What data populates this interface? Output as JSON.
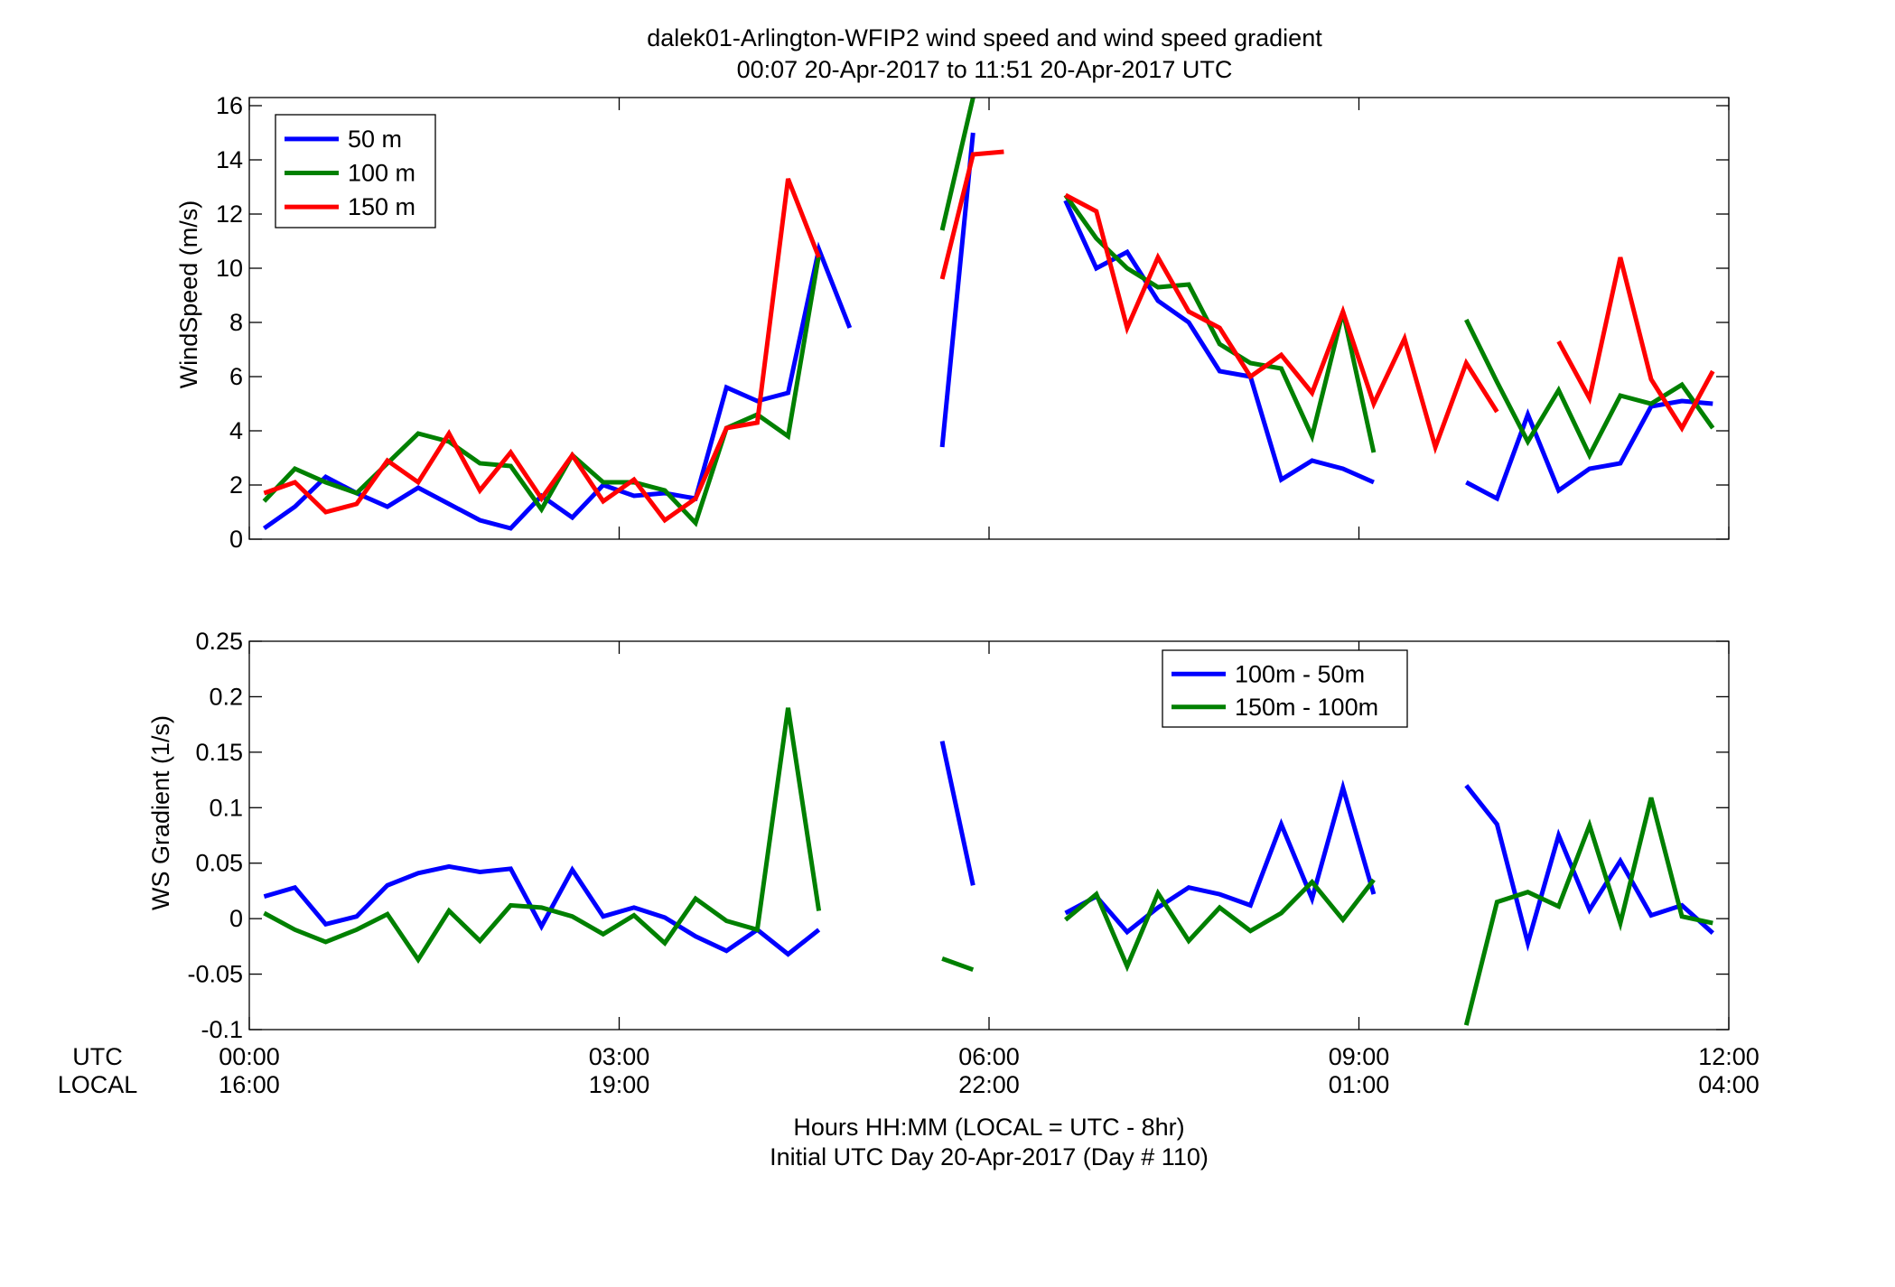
{
  "figure": {
    "title_line1": "dalek01-Arlington-WFIP2  wind speed and wind speed gradient",
    "title_line2": "00:07 20-Apr-2017 to 11:51 20-Apr-2017  UTC",
    "xlabel_line1": "Hours HH:MM  (LOCAL = UTC - 8hr)",
    "xlabel_line2": "Initial UTC Day 20-Apr-2017 (Day # 110)",
    "utc_row_label": "UTC",
    "local_row_label": "LOCAL",
    "utc_ticks": [
      "00:00",
      "03:00",
      "06:00",
      "09:00",
      "12:00"
    ],
    "local_ticks": [
      "16:00",
      "19:00",
      "22:00",
      "01:00",
      "04:00"
    ]
  },
  "chart_data": [
    {
      "type": "line",
      "title": "",
      "xlabel": "",
      "ylabel": "WindSpeed (m/s)",
      "xlim": [
        0,
        12
      ],
      "ylim": [
        0,
        16.3
      ],
      "yticks": [
        0,
        2,
        4,
        6,
        8,
        10,
        12,
        14,
        16
      ],
      "ytick_labels": [
        "0",
        "2",
        "4",
        "6",
        "8",
        "10",
        "12",
        "14",
        "16"
      ],
      "grid": false,
      "legend_position": "top-left",
      "x": [
        0.12,
        0.37,
        0.62,
        0.87,
        1.12,
        1.37,
        1.62,
        1.87,
        2.12,
        2.37,
        2.62,
        2.87,
        3.12,
        3.37,
        3.62,
        3.87,
        4.12,
        4.37,
        4.62,
        4.87,
        5.12,
        5.37,
        5.62,
        5.87,
        6.12,
        6.37,
        6.62,
        6.87,
        7.12,
        7.37,
        7.62,
        7.87,
        8.12,
        8.37,
        8.62,
        8.87,
        9.12,
        9.37,
        9.62,
        9.87,
        10.12,
        10.37,
        10.62,
        10.87,
        11.12,
        11.37,
        11.62,
        11.87
      ],
      "series": [
        {
          "name": "50 m",
          "color": "#0000ff",
          "values": [
            0.4,
            1.2,
            2.3,
            1.7,
            1.2,
            1.9,
            1.3,
            0.7,
            0.4,
            1.6,
            0.8,
            2.0,
            1.6,
            1.7,
            1.5,
            5.6,
            5.1,
            5.4,
            10.7,
            7.8,
            null,
            null,
            3.4,
            15.0,
            null,
            null,
            12.5,
            10.0,
            10.6,
            8.8,
            8.0,
            6.2,
            6.0,
            2.2,
            2.9,
            2.6,
            2.1,
            null,
            null,
            2.1,
            1.5,
            4.6,
            1.8,
            2.6,
            2.8,
            4.9,
            5.1,
            5.0
          ]
        },
        {
          "name": "100 m",
          "color": "#008000",
          "values": [
            1.4,
            2.6,
            2.1,
            1.7,
            2.8,
            3.9,
            3.6,
            2.8,
            2.7,
            1.1,
            3.1,
            2.1,
            2.1,
            1.8,
            0.6,
            4.1,
            4.6,
            3.8,
            10.5,
            null,
            null,
            null,
            11.4,
            16.3,
            null,
            null,
            12.7,
            11.1,
            10.0,
            9.3,
            9.4,
            7.2,
            6.5,
            6.3,
            3.8,
            8.4,
            3.2,
            null,
            null,
            8.1,
            5.8,
            3.6,
            5.5,
            3.1,
            5.3,
            5.0,
            5.7,
            4.1
          ]
        },
        {
          "name": "150 m",
          "color": "#ff0000",
          "values": [
            1.7,
            2.1,
            1.0,
            1.3,
            2.9,
            2.1,
            3.9,
            1.8,
            3.2,
            1.5,
            3.1,
            1.4,
            2.2,
            0.7,
            1.5,
            4.1,
            4.3,
            13.3,
            10.4,
            null,
            null,
            null,
            9.6,
            14.2,
            14.3,
            null,
            12.7,
            12.1,
            7.8,
            10.4,
            8.4,
            7.8,
            6.0,
            6.8,
            5.4,
            8.4,
            5.0,
            7.4,
            3.4,
            6.5,
            4.7,
            null,
            7.3,
            5.2,
            10.4,
            5.9,
            4.1,
            6.2
          ]
        }
      ]
    },
    {
      "type": "line",
      "title": "",
      "xlabel": "",
      "ylabel": "WS Gradient (1/s)",
      "xlim": [
        0,
        12
      ],
      "ylim": [
        -0.1,
        0.25
      ],
      "yticks": [
        -0.1,
        -0.05,
        0,
        0.05,
        0.1,
        0.15,
        0.2,
        0.25
      ],
      "ytick_labels": [
        "-0.1",
        "-0.05",
        "0",
        "0.05",
        "0.1",
        "0.15",
        "0.2",
        "0.25"
      ],
      "grid": false,
      "legend_position": "top-right",
      "x": [
        0.12,
        0.37,
        0.62,
        0.87,
        1.12,
        1.37,
        1.62,
        1.87,
        2.12,
        2.37,
        2.62,
        2.87,
        3.12,
        3.37,
        3.62,
        3.87,
        4.12,
        4.37,
        4.62,
        4.87,
        5.12,
        5.37,
        5.62,
        5.87,
        6.12,
        6.37,
        6.62,
        6.87,
        7.12,
        7.37,
        7.62,
        7.87,
        8.12,
        8.37,
        8.62,
        8.87,
        9.12,
        9.37,
        9.62,
        9.87,
        10.12,
        10.37,
        10.62,
        10.87,
        11.12,
        11.37,
        11.62,
        11.87
      ],
      "series": [
        {
          "name": "100m - 50m",
          "color": "#0000ff",
          "values": [
            0.02,
            0.028,
            -0.005,
            0.002,
            0.03,
            0.041,
            0.047,
            0.042,
            0.045,
            -0.007,
            0.044,
            0.002,
            0.01,
            0.001,
            -0.016,
            -0.029,
            -0.01,
            -0.032,
            -0.01,
            null,
            null,
            null,
            0.16,
            0.03,
            null,
            null,
            0.005,
            0.02,
            -0.012,
            0.01,
            0.028,
            0.022,
            0.012,
            0.085,
            0.018,
            0.118,
            0.022,
            null,
            null,
            0.12,
            0.085,
            -0.022,
            0.075,
            0.008,
            0.052,
            0.003,
            0.012,
            -0.013
          ]
        },
        {
          "name": "150m - 100m",
          "color": "#008000",
          "values": [
            0.005,
            -0.01,
            -0.021,
            -0.01,
            0.004,
            -0.037,
            0.007,
            -0.02,
            0.012,
            0.01,
            0.002,
            -0.014,
            0.003,
            -0.022,
            0.018,
            -0.002,
            -0.01,
            0.19,
            0.007,
            null,
            null,
            null,
            -0.036,
            -0.046,
            null,
            null,
            -0.001,
            0.022,
            -0.043,
            0.023,
            -0.02,
            0.01,
            -0.011,
            0.005,
            0.033,
            -0.001,
            0.035,
            null,
            null,
            -0.096,
            0.015,
            0.024,
            0.011,
            0.084,
            -0.004,
            0.109,
            0.002,
            -0.004
          ]
        }
      ]
    }
  ]
}
